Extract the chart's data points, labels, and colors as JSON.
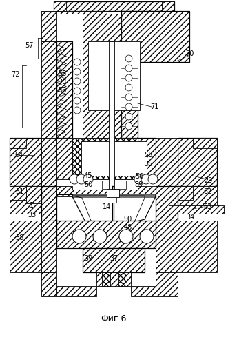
{
  "title": "Фиг.6",
  "title_fontsize": 9,
  "bg_color": "#ffffff",
  "line_color": "#1a1a1a",
  "fig_width": 3.31,
  "fig_height": 4.99,
  "dpi": 100
}
